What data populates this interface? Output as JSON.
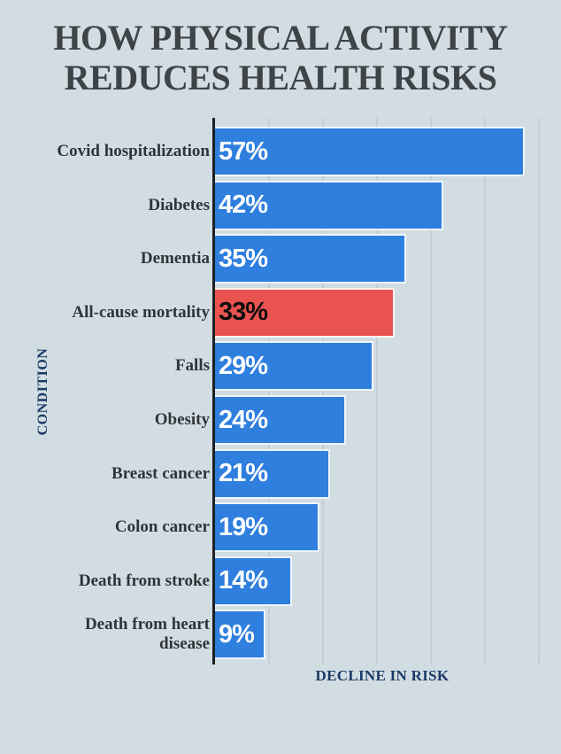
{
  "title": {
    "line1": "HOW PHYSICAL ACTIVITY",
    "line2": "REDUCES HEALTH RISKS"
  },
  "chart_data": {
    "type": "bar",
    "orientation": "horizontal",
    "title": "HOW PHYSICAL ACTIVITY REDUCES HEALTH RISKS",
    "xlabel": "DECLINE IN RISK",
    "ylabel": "CONDITION",
    "categories": [
      "Covid hospitalization",
      "Diabetes",
      "Dementia",
      "All-cause mortality",
      "Falls",
      "Obesity",
      "Breast cancer",
      "Colon cancer",
      "Death from stroke",
      "Death from heart disease"
    ],
    "values": [
      57,
      42,
      35,
      33,
      29,
      24,
      21,
      19,
      14,
      9
    ],
    "value_labels": [
      "57%",
      "42%",
      "35%",
      "33%",
      "29%",
      "24%",
      "21%",
      "19%",
      "14%",
      "9%"
    ],
    "highlight_index": 3,
    "wrap_label_index": 9,
    "xlim": [
      0,
      63
    ],
    "grid_percents": [
      10,
      20,
      30,
      40,
      50,
      60
    ],
    "grid_on": true,
    "legend_position": "none"
  },
  "colors": {
    "background": "#d2dde3",
    "bar": "#2f7fde",
    "bar_highlight": "#e9534f",
    "title_text": "#3e4347",
    "category_text": "#2f3438",
    "axis_label_text": "#1a3a66",
    "axis_line": "#1c2024",
    "gridline": "#c3cfd5",
    "value_text": "#ffffff",
    "value_text_highlight": "#0d0d0d"
  }
}
